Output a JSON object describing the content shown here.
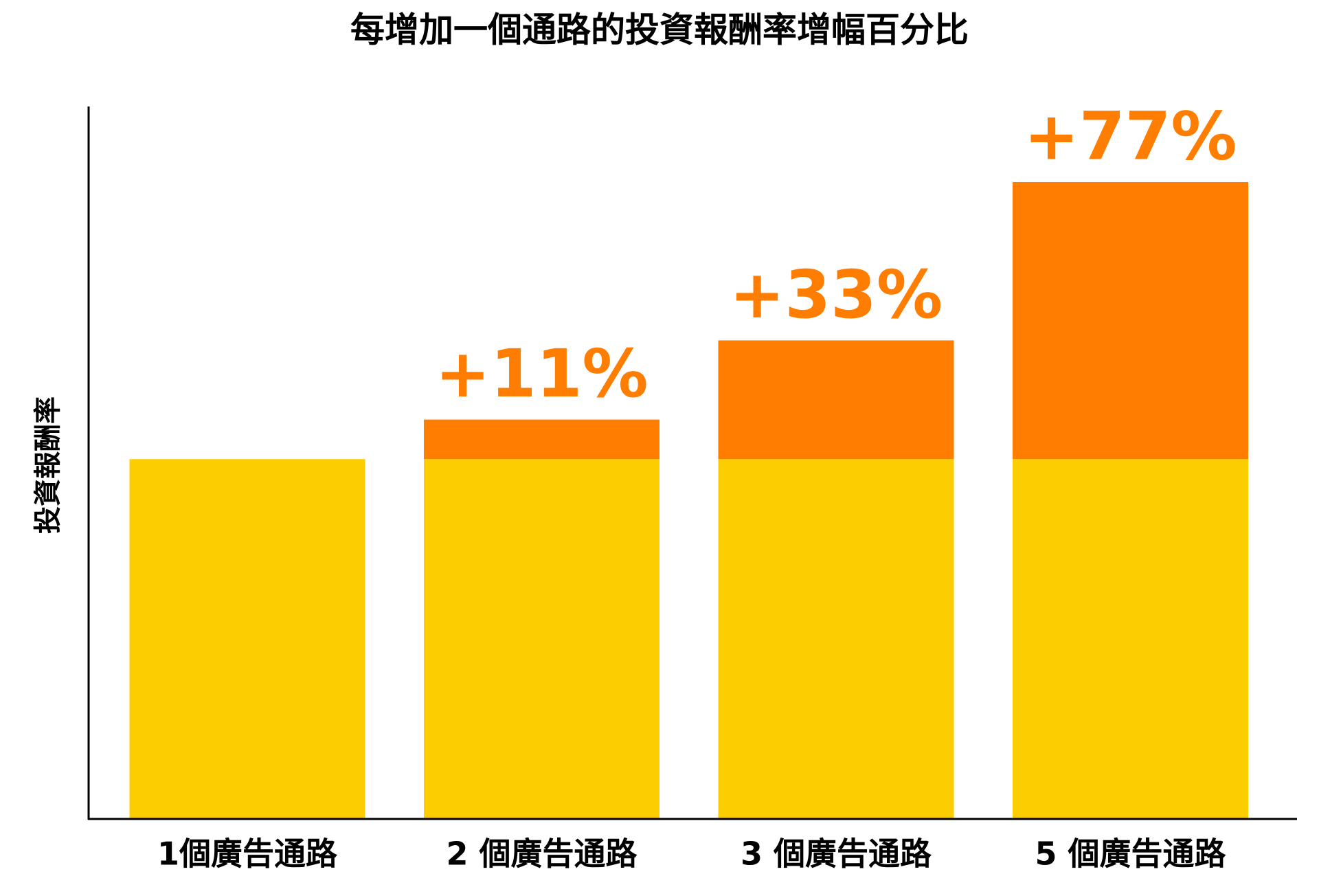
{
  "chart_data": {
    "type": "stacked_bar",
    "title": "每增加一個通路的投資報酬率增幅百分比",
    "y_label": "投資報酬率",
    "categories": [
      "1個廣告通路",
      "2 個廣告通路",
      "3 個廣告通路",
      "5 個廣告通路"
    ],
    "series": [
      {
        "color": "#fccd00",
        "values": [
          100,
          100,
          100,
          100
        ]
      },
      {
        "color": "#ff7d00",
        "values": [
          null,
          11,
          33,
          77
        ],
        "value_labels": [
          null,
          "+11%",
          "+33%",
          "+77%"
        ]
      }
    ],
    "ylim": [
      0,
      198
    ]
  }
}
